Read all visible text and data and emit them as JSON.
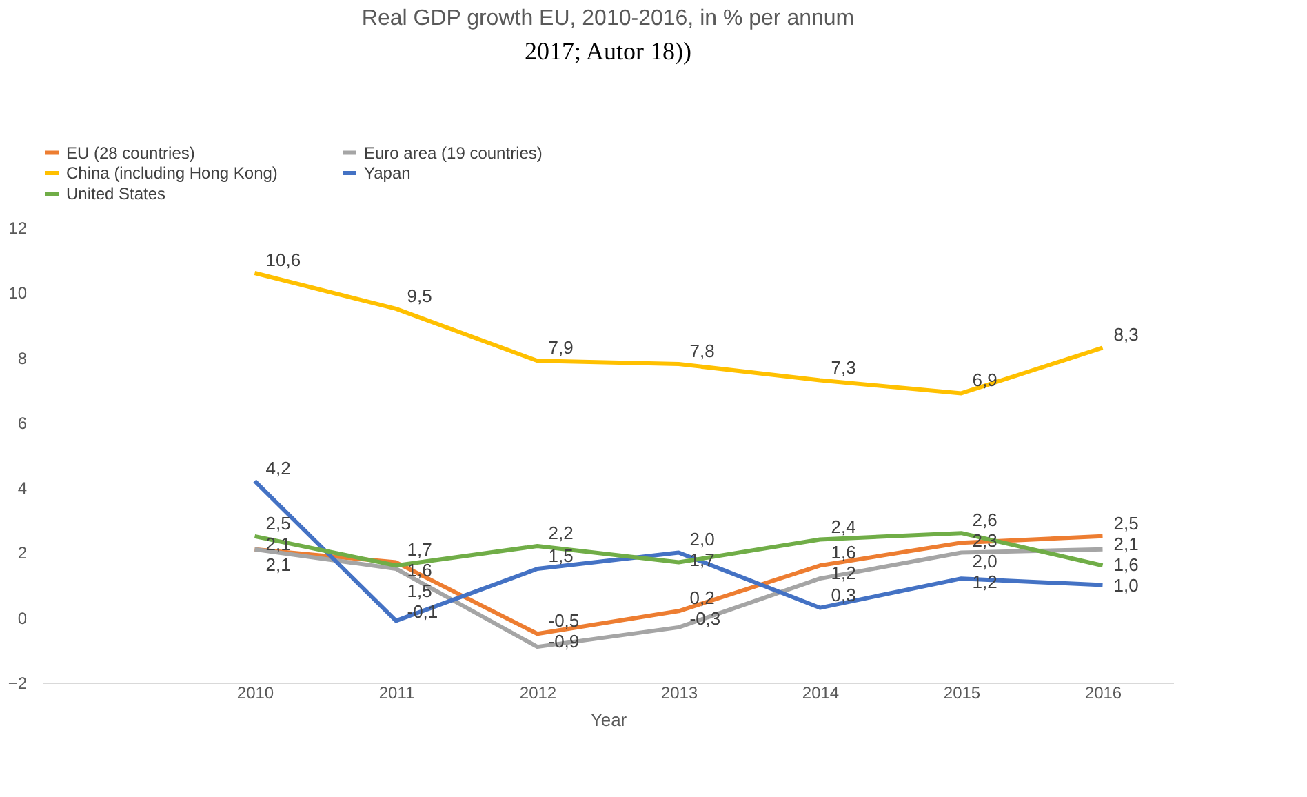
{
  "chart_data": {
    "type": "line",
    "title": "Real GDP growth EU, 2010-2016, in % per annum",
    "xlabel": "Year",
    "annotations": [
      "2017; Autor 18))"
    ],
    "categories": [
      null,
      "2010",
      "2011",
      "2012",
      "2013",
      "2014",
      "2015",
      "2016"
    ],
    "series": [
      {
        "name": "EU (28 countries)",
        "color": "#ed7d31",
        "values": [
          null,
          2.1,
          1.7,
          -0.5,
          0.2,
          1.6,
          2.3,
          2.5
        ],
        "value_labels": [
          null,
          "2,1",
          "1,7",
          "-0,5",
          "0,2",
          "1,6",
          "2,3",
          "2,5"
        ]
      },
      {
        "name": "Euro area (19 countries)",
        "color": "#a5a5a5",
        "values": [
          null,
          2.1,
          1.5,
          -0.9,
          -0.3,
          1.2,
          2.0,
          2.1
        ],
        "value_labels": [
          null,
          "2,1",
          "1,5",
          "-0,9",
          "-0,3",
          "1,2",
          "2,0",
          "2,1"
        ]
      },
      {
        "name": "China (including Hong Kong)",
        "color": "#ffc000",
        "values": [
          null,
          10.6,
          9.5,
          7.9,
          7.8,
          7.3,
          6.9,
          8.3
        ],
        "value_labels": [
          null,
          "10,6",
          "9,5",
          "7,9",
          "7,8",
          "7,3",
          "6,9",
          "8,3"
        ]
      },
      {
        "name": "Yapan",
        "color": "#4472c4",
        "values": [
          null,
          4.2,
          -0.1,
          1.5,
          2.0,
          0.3,
          1.2,
          1.0
        ],
        "value_labels": [
          null,
          "4,2",
          "-0,1",
          "1,5",
          "2,0",
          "0,3",
          "1,2",
          "1,0"
        ]
      },
      {
        "name": "United States",
        "color": "#70ad47",
        "values": [
          null,
          2.5,
          1.6,
          2.2,
          1.7,
          2.4,
          2.6,
          1.6
        ],
        "value_labels": [
          null,
          "2,5",
          "1,6",
          "2,2",
          "1,7",
          "2,4",
          "2,6",
          "1,6"
        ]
      }
    ],
    "ylim": [
      -2,
      12
    ],
    "yticks": [
      -2,
      0,
      2,
      4,
      6,
      8,
      10,
      12
    ],
    "grid": false,
    "legend": "top",
    "line_style": "solid",
    "marker": "none"
  }
}
